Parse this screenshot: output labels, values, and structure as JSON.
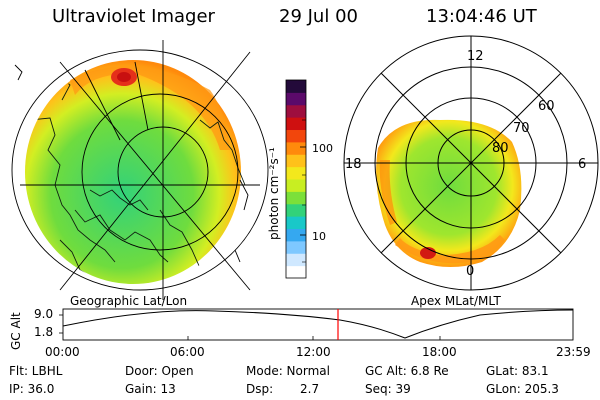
{
  "header": {
    "title": "Ultraviolet Imager",
    "date": "29 Jul 00",
    "time": "13:04:46 UT"
  },
  "panels": {
    "left_label": "Geographic Lat/Lon",
    "right_label": "Apex MLat/MLT"
  },
  "polar_labels": {
    "mlt_12": "12",
    "mlt_18": "18",
    "mlt_6": "6",
    "mlt_0": "0",
    "lat_60": "60",
    "lat_70": "70",
    "lat_80": "80"
  },
  "colorbar": {
    "label": "photon cm⁻²s⁻¹",
    "tick_100": "100",
    "tick_10": "10",
    "colors": [
      "#ffffff",
      "#cfe8ff",
      "#7ec8ff",
      "#35a8f0",
      "#19c8c8",
      "#32d27a",
      "#7be03a",
      "#c8ee22",
      "#f3e81c",
      "#ffc11a",
      "#ff8a0c",
      "#f2460c",
      "#cf1010",
      "#9e0e3e",
      "#5b0a6a",
      "#230a3a"
    ]
  },
  "altitude_plot": {
    "axis_label": "GC Alt",
    "y_top": "9.0",
    "y_bottom": "1.8",
    "x_ticks": [
      "00:00",
      "06:00",
      "12:00",
      "18:00",
      "23:59"
    ],
    "marker_color": "#ff0000"
  },
  "footer": {
    "filter": "Flt: LBHL",
    "door": "Door: Open",
    "mode": "Mode: Normal",
    "gc_alt": "GC Alt: 6.8 Re",
    "glat": "GLat: 83.1",
    "ip": "IP: 36.0",
    "gain": "Gain: 13",
    "dsp_label": "Dsp:",
    "dsp_value": "2.7",
    "seq": "Seq: 39",
    "glon": "GLon: 205.3"
  }
}
